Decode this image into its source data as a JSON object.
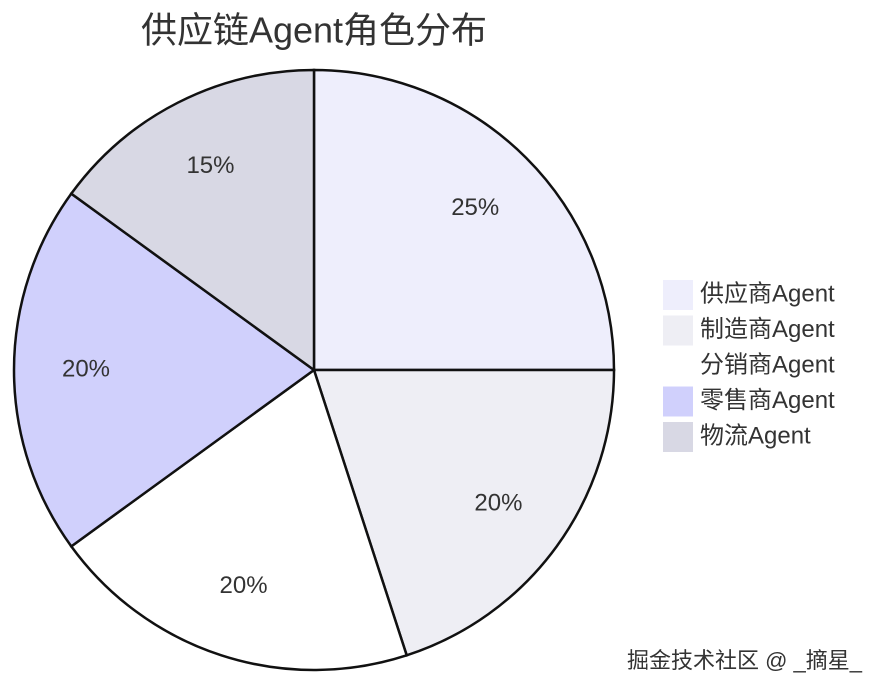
{
  "chart_data": {
    "type": "pie",
    "title": "供应链Agent角色分布",
    "categories": [
      "供应商Agent",
      "制造商Agent",
      "分销商Agent",
      "零售商Agent",
      "物流Agent"
    ],
    "values": [
      25,
      20,
      20,
      20,
      15
    ],
    "value_labels": [
      "25%",
      "20%",
      "20%",
      "20%",
      "15%"
    ],
    "colors": [
      "#eeeefc",
      "#eeeef4",
      "#ffffff",
      "#d0d0fc",
      "#d8d8e4"
    ],
    "legend": "right"
  },
  "watermark": "掘金技术社区 @ _摘星_"
}
